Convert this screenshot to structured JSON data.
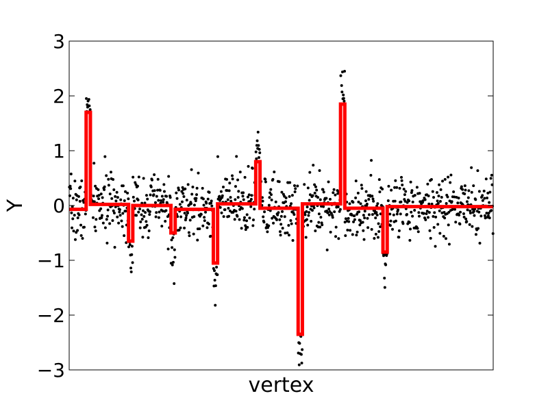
{
  "chart_data": {
    "type": "scatter",
    "xlabel": "vertex",
    "ylabel": "Y",
    "xlim": [
      0,
      1000
    ],
    "ylim": [
      -3,
      3
    ],
    "yticks": [
      3,
      2,
      1,
      0,
      -1,
      -2,
      -3
    ],
    "ytick_labels": [
      "3",
      "2",
      "1",
      "0",
      "−1",
      "−2",
      "−3"
    ],
    "xticks": [],
    "grid": false,
    "legend": "none",
    "series": [
      {
        "kind": "scatter",
        "color": "#000000",
        "n_points": 1000,
        "noise_sd": 0.28,
        "spike_excess": 0.35,
        "seed": 7
      },
      {
        "kind": "step",
        "color": "#ff0000",
        "segments": [
          {
            "x0": 0,
            "x1": 40,
            "y": -0.07
          },
          {
            "x0": 40,
            "x1": 50,
            "y": 1.7
          },
          {
            "x0": 50,
            "x1": 140,
            "y": 0.02
          },
          {
            "x0": 140,
            "x1": 150,
            "y": -0.65
          },
          {
            "x0": 150,
            "x1": 240,
            "y": 0.0
          },
          {
            "x0": 240,
            "x1": 250,
            "y": -0.5
          },
          {
            "x0": 250,
            "x1": 340,
            "y": -0.07
          },
          {
            "x0": 340,
            "x1": 350,
            "y": -1.05
          },
          {
            "x0": 350,
            "x1": 440,
            "y": 0.03
          },
          {
            "x0": 440,
            "x1": 450,
            "y": 0.8
          },
          {
            "x0": 450,
            "x1": 540,
            "y": -0.05
          },
          {
            "x0": 540,
            "x1": 550,
            "y": -2.35
          },
          {
            "x0": 550,
            "x1": 640,
            "y": 0.03
          },
          {
            "x0": 640,
            "x1": 650,
            "y": 1.85
          },
          {
            "x0": 650,
            "x1": 740,
            "y": -0.05
          },
          {
            "x0": 740,
            "x1": 750,
            "y": -0.85
          },
          {
            "x0": 750,
            "x1": 1000,
            "y": -0.02
          }
        ]
      }
    ]
  }
}
